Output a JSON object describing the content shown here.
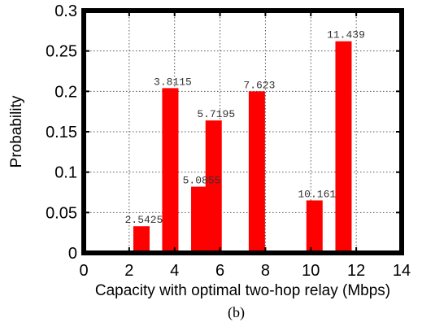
{
  "chart_data": {
    "type": "bar",
    "title": "",
    "xlabel": "Capacity with optimal two-hop relay (Mbps)",
    "ylabel": "Probability",
    "caption": "(b)",
    "xlim": [
      0,
      14
    ],
    "ylim": [
      0,
      0.3
    ],
    "xticks": [
      0,
      2,
      4,
      6,
      8,
      10,
      12,
      14
    ],
    "yticks": [
      0,
      0.05,
      0.1,
      0.15,
      0.2,
      0.25,
      0.3
    ],
    "xtick_labels": [
      "0",
      "2",
      "4",
      "6",
      "8",
      "10",
      "12",
      "14"
    ],
    "ytick_labels": [
      "0",
      "0.05",
      "0.1",
      "0.15",
      "0.2",
      "0.25",
      "0.3"
    ],
    "grid": true,
    "bar_color": "#ff0000",
    "bars": [
      {
        "x": 2.5425,
        "value": 0.033,
        "label": "2.5425"
      },
      {
        "x": 3.8115,
        "value": 0.204,
        "label": "3.8115"
      },
      {
        "x": 5.0855,
        "value": 0.082,
        "label": "5.0855"
      },
      {
        "x": 5.7195,
        "value": 0.164,
        "label": "5.7195"
      },
      {
        "x": 7.623,
        "value": 0.2,
        "label": "7.623"
      },
      {
        "x": 10.161,
        "value": 0.065,
        "label": "10.161"
      },
      {
        "x": 11.439,
        "value": 0.262,
        "label": "11.439"
      }
    ]
  }
}
